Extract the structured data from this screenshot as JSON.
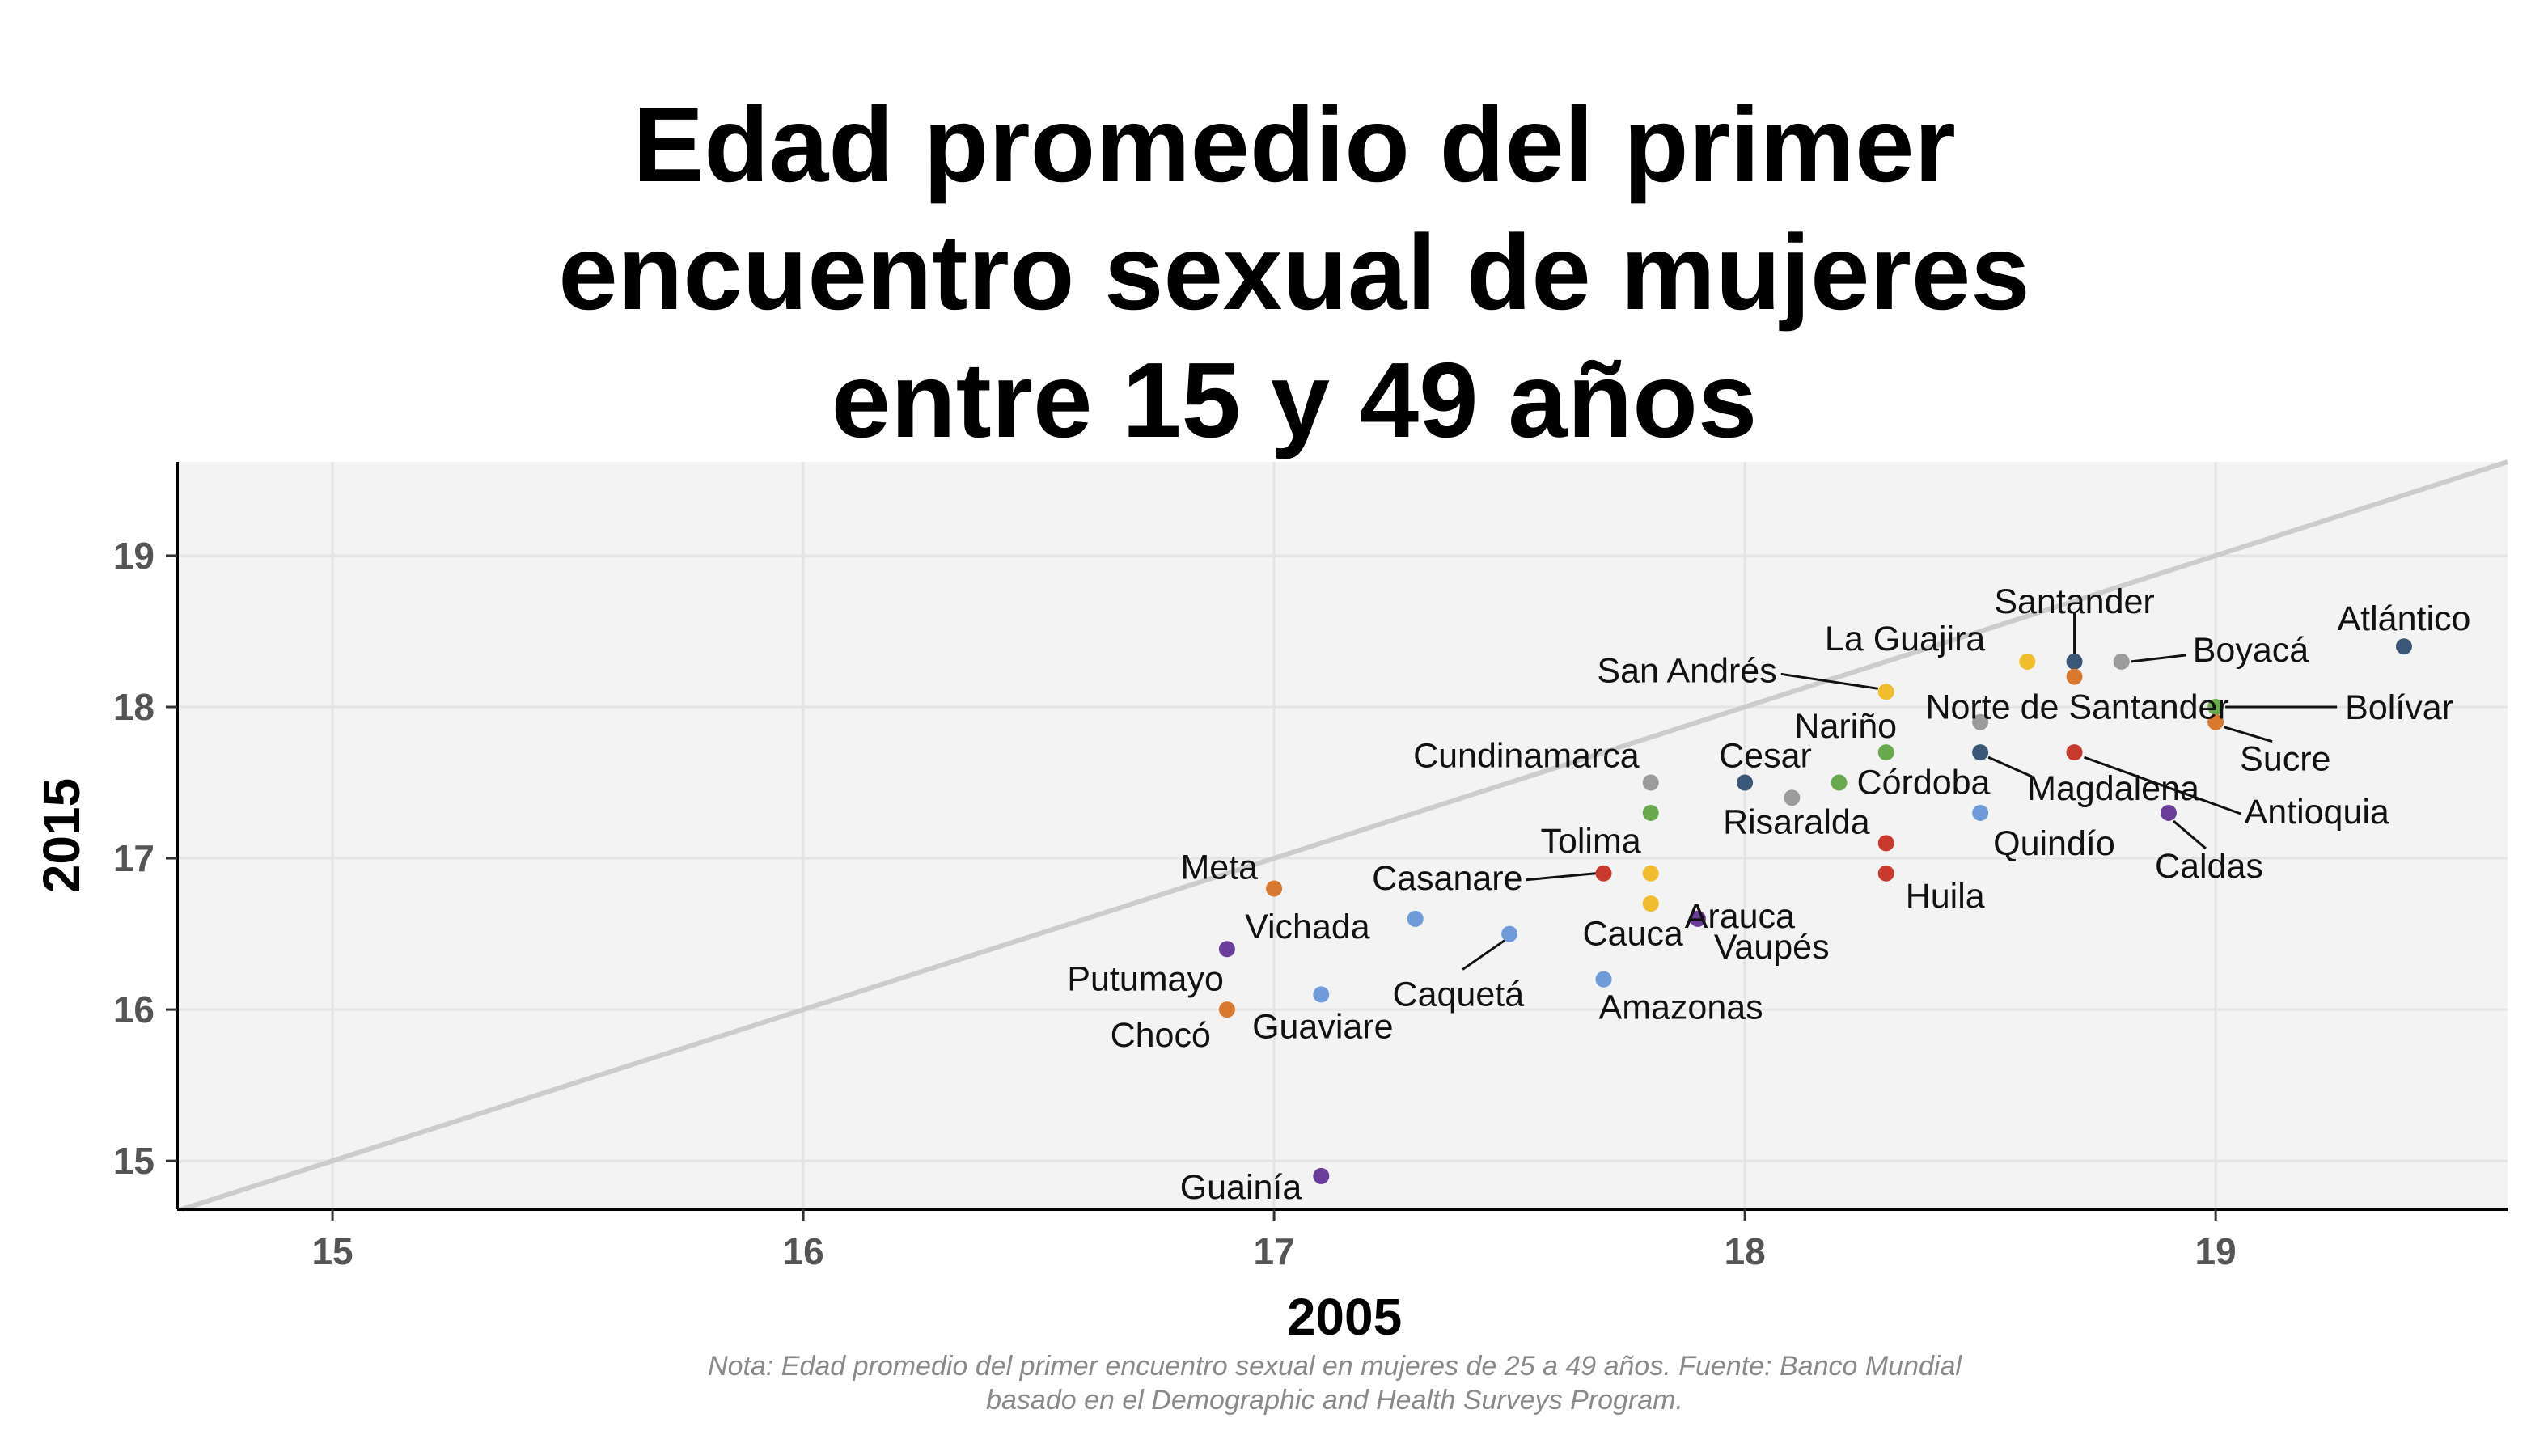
{
  "chart_data": {
    "type": "scatter",
    "title": "Edad promedio del primer\nencuentro sexual de mujeres\nentre 15 y 49 años",
    "xlabel": "2005",
    "ylabel": "2015",
    "xlim": [
      14.67,
      19.62
    ],
    "ylim": [
      14.68,
      19.62
    ],
    "xticks": [
      15,
      16,
      17,
      18,
      19
    ],
    "yticks": [
      15,
      16,
      17,
      18,
      19
    ],
    "grid": true,
    "reference_line": "y = x",
    "note": "Nota: Edad promedio del primer encuentro sexual en mujeres de 25 a 49 años. Fuente: Banco Mundial\nbasado en el Demographic and Health Surveys Program.",
    "colors": {
      "navy": "#3a5778",
      "gray": "#9b9b9b",
      "orange": "#d9782f",
      "yellow": "#f0be2c",
      "green": "#6aaa4f",
      "red": "#c73a2d",
      "blue": "#6f9cd8",
      "purple": "#6a3d9a",
      "panel": "#f3f3f3",
      "grid": "#e4e4e4",
      "refline": "#cccccc"
    },
    "points": [
      {
        "name": "Atlántico",
        "x": 19.4,
        "y": 18.4,
        "color": "navy"
      },
      {
        "name": "Santander",
        "x": 18.7,
        "y": 18.3,
        "color": "navy"
      },
      {
        "name": "Boyacá",
        "x": 18.8,
        "y": 18.3,
        "color": "gray"
      },
      {
        "name": "La Guajira",
        "x": 18.6,
        "y": 18.3,
        "color": "yellow"
      },
      {
        "name": "",
        "x": 18.7,
        "y": 18.2,
        "color": "orange"
      },
      {
        "name": "San Andrés",
        "x": 18.3,
        "y": 18.1,
        "color": "yellow"
      },
      {
        "name": "Bolívar",
        "x": 19.0,
        "y": 18.0,
        "color": "green"
      },
      {
        "name": "Sucre",
        "x": 19.0,
        "y": 17.9,
        "color": "orange"
      },
      {
        "name": "Norte de Santander",
        "x": 18.5,
        "y": 17.9,
        "color": "gray"
      },
      {
        "name": "Nariño",
        "x": 18.3,
        "y": 17.7,
        "color": "green"
      },
      {
        "name": "Magdalena",
        "x": 18.5,
        "y": 17.7,
        "color": "navy"
      },
      {
        "name": "Antioquia",
        "x": 18.7,
        "y": 17.7,
        "color": "red"
      },
      {
        "name": "Cundinamarca",
        "x": 17.8,
        "y": 17.5,
        "color": "gray"
      },
      {
        "name": "Cesar",
        "x": 18.0,
        "y": 17.5,
        "color": "navy"
      },
      {
        "name": "Córdoba",
        "x": 18.2,
        "y": 17.5,
        "color": "green"
      },
      {
        "name": "",
        "x": 18.1,
        "y": 17.4,
        "color": "gray"
      },
      {
        "name": "",
        "x": 17.8,
        "y": 17.3,
        "color": "green"
      },
      {
        "name": "Quindío",
        "x": 18.5,
        "y": 17.3,
        "color": "blue"
      },
      {
        "name": "Caldas",
        "x": 18.9,
        "y": 17.3,
        "color": "purple"
      },
      {
        "name": "Risaralda",
        "x": 18.3,
        "y": 17.1,
        "color": "red"
      },
      {
        "name": "Tolima",
        "x": 17.8,
        "y": 16.9,
        "color": "yellow"
      },
      {
        "name": "Casanare",
        "x": 17.7,
        "y": 16.9,
        "color": "red"
      },
      {
        "name": "Huila",
        "x": 18.3,
        "y": 16.9,
        "color": "red"
      },
      {
        "name": "Meta",
        "x": 17.0,
        "y": 16.8,
        "color": "orange"
      },
      {
        "name": "Arauca",
        "x": 17.8,
        "y": 16.7,
        "color": "yellow"
      },
      {
        "name": "Vaupés",
        "x": 17.9,
        "y": 16.6,
        "color": "purple"
      },
      {
        "name": "Vichada",
        "x": 17.3,
        "y": 16.6,
        "color": "blue"
      },
      {
        "name": "Caquetá",
        "x": 17.5,
        "y": 16.5,
        "color": "blue"
      },
      {
        "name": "Putumayo",
        "x": 16.9,
        "y": 16.4,
        "color": "purple"
      },
      {
        "name": "Cauca",
        "x": 17.7,
        "y": 16.2,
        "color": "blue"
      },
      {
        "name": "Amazonas",
        "x": 17.7,
        "y": 16.2,
        "color": "blue"
      },
      {
        "name": "Guaviare",
        "x": 17.1,
        "y": 16.1,
        "color": "blue"
      },
      {
        "name": "Chocó",
        "x": 16.9,
        "y": 16.0,
        "color": "orange"
      },
      {
        "name": "Guainía",
        "x": 17.1,
        "y": 14.9,
        "color": "purple"
      }
    ]
  }
}
